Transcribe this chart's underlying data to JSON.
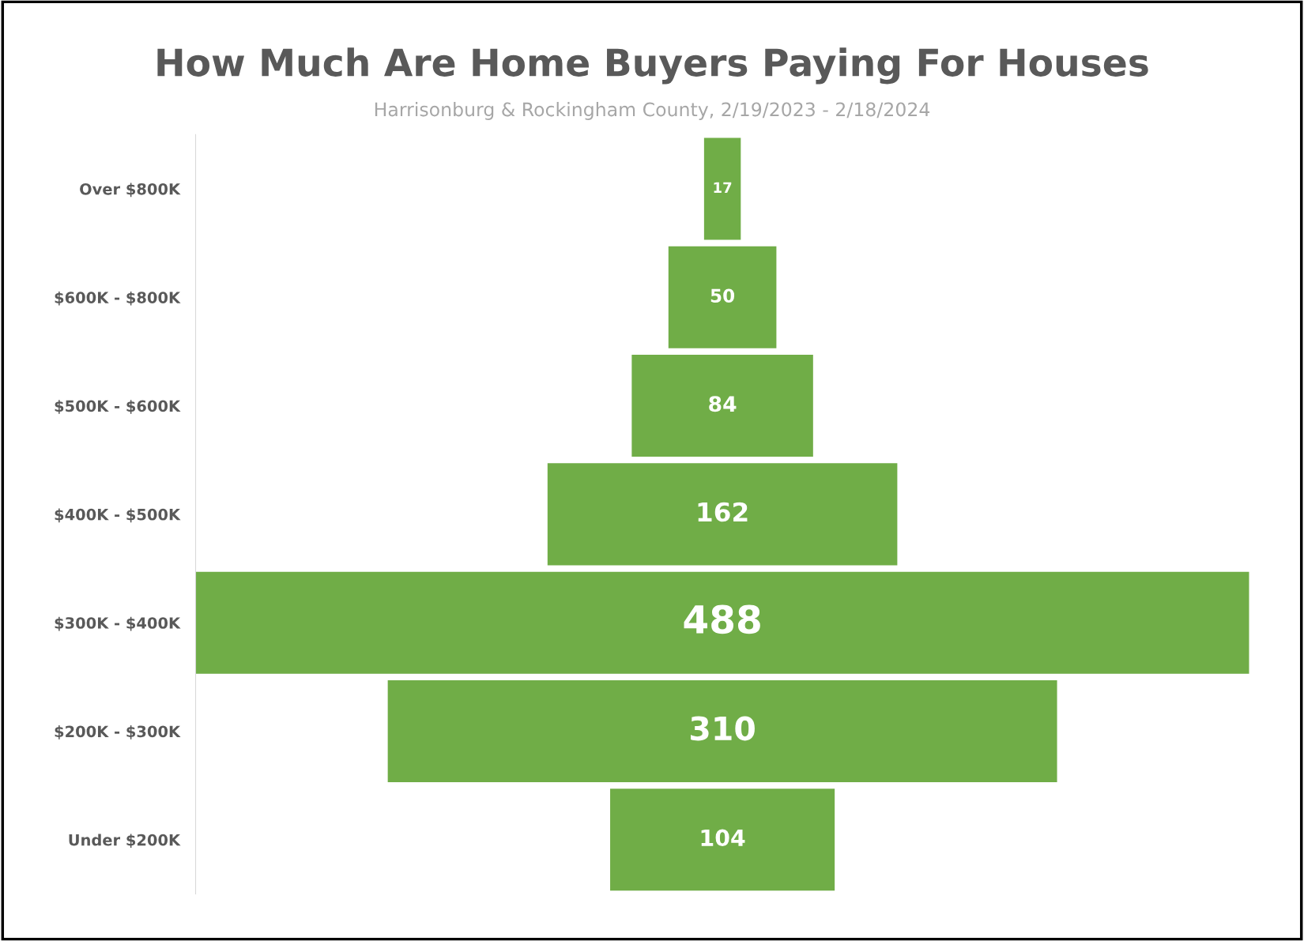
{
  "chart_data": {
    "type": "other",
    "title": "How Much Are Home Buyers Paying For Houses",
    "subtitle": "Harrisonburg & Rockingham County, 2/19/2023 - 2/18/2024",
    "categories": [
      "Over $800K",
      "$600K - $800K",
      "$500K - $600K",
      "$400K - $500K",
      "$300K - $400K",
      "$200K - $300K",
      "Under $200K"
    ],
    "values": [
      17,
      50,
      84,
      162,
      488,
      310,
      104
    ],
    "color": "#70ad47",
    "data_labels": true
  }
}
